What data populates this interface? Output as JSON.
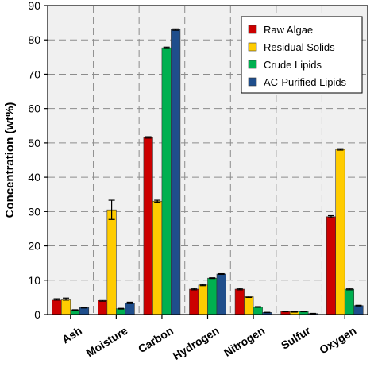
{
  "chart_data": {
    "type": "bar",
    "title": "",
    "xlabel": "",
    "ylabel": "Concentration (wt%)",
    "ylim": [
      0,
      90
    ],
    "yticks": [
      0,
      10,
      20,
      30,
      40,
      50,
      60,
      70,
      80,
      90
    ],
    "grid": true,
    "legend_position": "top-right",
    "categories": [
      "Ash",
      "Moisture",
      "Carbon",
      "Hydrogen",
      "Nitrogen",
      "Sulfur",
      "Oxygen"
    ],
    "series": [
      {
        "name": "Raw Algae",
        "color": "#cc0000",
        "values": [
          4.4,
          4.1,
          51.6,
          7.4,
          7.4,
          0.9,
          28.5
        ],
        "errors": [
          0.2,
          0.2,
          0.2,
          0.2,
          0.2,
          0.1,
          0.3
        ]
      },
      {
        "name": "Residual Solids",
        "color": "#ffcc00",
        "values": [
          4.5,
          30.5,
          33.0,
          8.6,
          5.2,
          0.8,
          48.1
        ],
        "errors": [
          0.3,
          2.8,
          0.3,
          0.2,
          0.2,
          0.1,
          0.2
        ]
      },
      {
        "name": "Crude Lipids",
        "color": "#00b050",
        "values": [
          1.3,
          1.7,
          77.7,
          10.6,
          2.2,
          0.9,
          7.4
        ],
        "errors": [
          0.1,
          0.1,
          0.2,
          0.1,
          0.1,
          0.1,
          0.2
        ]
      },
      {
        "name": "AC-Purified Lipids",
        "color": "#1f4e8c",
        "values": [
          2.0,
          3.4,
          83.0,
          11.8,
          0.6,
          0.3,
          2.6
        ],
        "errors": [
          0.1,
          0.2,
          0.2,
          0.1,
          0.05,
          0.05,
          0.1
        ]
      }
    ]
  }
}
